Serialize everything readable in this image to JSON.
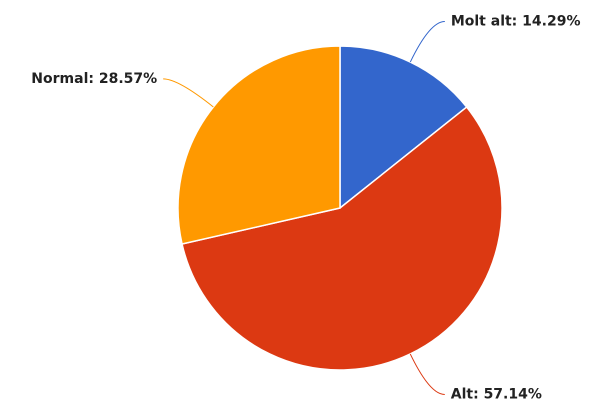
{
  "chart_data": {
    "type": "pie",
    "values": [
      14.29,
      57.14,
      28.57
    ],
    "value_labels": [
      "Molt alt: 14.29%",
      "Alt: 57.14%",
      "Normal: 28.57%"
    ],
    "colors": [
      "#3366cc",
      "#dc3912",
      "#ff9900"
    ]
  }
}
